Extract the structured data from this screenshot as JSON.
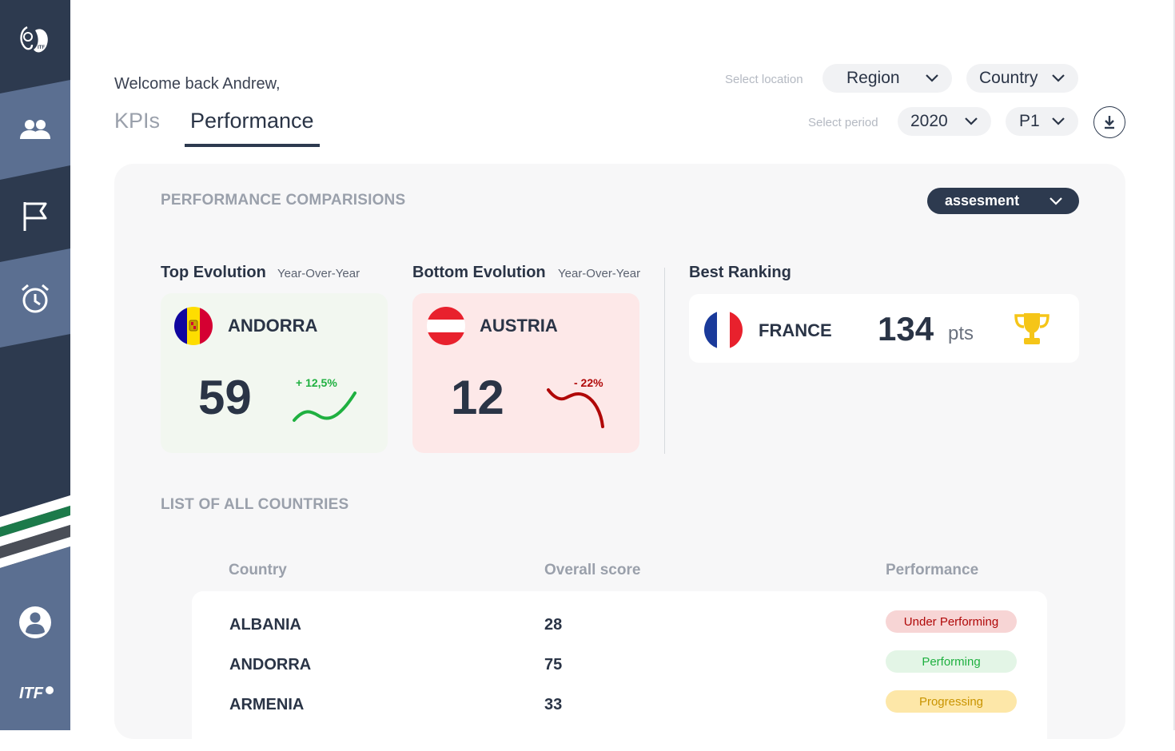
{
  "sidebar": {
    "logo_icon": "itf-logo-icon",
    "nav": [
      {
        "icon": "users-icon"
      },
      {
        "icon": "flag-icon"
      },
      {
        "icon": "alarm-clock-icon"
      }
    ],
    "profile_icon": "user-profile-icon",
    "footer_logo_text": "ITF"
  },
  "header": {
    "welcome": "Welcome back Andrew,",
    "tabs": [
      {
        "label": "KPIs",
        "active": false
      },
      {
        "label": "Performance",
        "active": true
      }
    ],
    "location_label": "Select location",
    "region_value": "Region",
    "country_value": "Country",
    "period_label": "Select period",
    "year_value": "2020",
    "period_value": "P1",
    "download_icon": "download-icon"
  },
  "comparisons": {
    "title": "PERFORMANCE COMPARISIONS",
    "metric_value": "assesment",
    "top": {
      "heading": "Top Evolution",
      "subheading": "Year-Over-Year",
      "country": "ANDORRA",
      "score": "59",
      "delta": "+ 12,5%",
      "trend_color": "#1fb040"
    },
    "bottom": {
      "heading": "Bottom Evolution",
      "subheading": "Year-Over-Year",
      "country": "AUSTRIA",
      "score": "12",
      "delta": "- 22%",
      "trend_color": "#b00808"
    },
    "best": {
      "heading": "Best Ranking",
      "country": "FRANCE",
      "points": "134",
      "unit": "pts",
      "icon": "trophy-icon"
    }
  },
  "countries": {
    "title": "LIST OF ALL COUNTRIES",
    "columns": [
      "Country",
      "Overall score",
      "Performance"
    ],
    "rows": [
      {
        "country": "ALBANIA",
        "score": "28",
        "status": "Under Performing"
      },
      {
        "country": "ANDORRA",
        "score": "75",
        "status": "Performing"
      },
      {
        "country": "ARMENIA",
        "score": "33",
        "status": "Progressing"
      }
    ]
  },
  "colors": {
    "sidebar": "#2d3a4f",
    "accent_green": "#1fb040",
    "accent_red": "#b00808",
    "trophy": "#f5c518"
  }
}
